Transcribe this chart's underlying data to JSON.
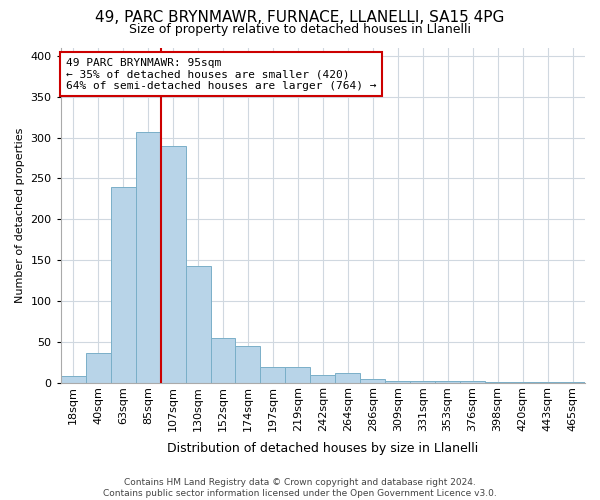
{
  "title": "49, PARC BRYNMAWR, FURNACE, LLANELLI, SA15 4PG",
  "subtitle": "Size of property relative to detached houses in Llanelli",
  "xlabel": "Distribution of detached houses by size in Llanelli",
  "ylabel": "Number of detached properties",
  "categories": [
    "18sqm",
    "40sqm",
    "63sqm",
    "85sqm",
    "107sqm",
    "130sqm",
    "152sqm",
    "174sqm",
    "197sqm",
    "219sqm",
    "242sqm",
    "264sqm",
    "286sqm",
    "309sqm",
    "331sqm",
    "353sqm",
    "376sqm",
    "398sqm",
    "420sqm",
    "443sqm",
    "465sqm"
  ],
  "values": [
    8,
    37,
    240,
    307,
    290,
    143,
    55,
    45,
    20,
    20,
    10,
    12,
    5,
    2,
    2,
    2,
    2,
    1,
    1,
    1,
    1
  ],
  "bar_color": "#b8d4e8",
  "bar_edge_color": "#7aafc8",
  "redline_index": 4,
  "annotation_text": "49 PARC BRYNMAWR: 95sqm\n← 35% of detached houses are smaller (420)\n64% of semi-detached houses are larger (764) →",
  "annotation_box_color": "#ffffff",
  "annotation_box_edge_color": "#cc0000",
  "redline_color": "#cc0000",
  "ylim": [
    0,
    410
  ],
  "yticks": [
    0,
    50,
    100,
    150,
    200,
    250,
    300,
    350,
    400
  ],
  "footer": "Contains HM Land Registry data © Crown copyright and database right 2024.\nContains public sector information licensed under the Open Government Licence v3.0.",
  "background_color": "#ffffff",
  "grid_color": "#d0d8e0",
  "title_fontsize": 11,
  "subtitle_fontsize": 9,
  "xlabel_fontsize": 9,
  "ylabel_fontsize": 8,
  "tick_fontsize": 8,
  "footer_fontsize": 6.5,
  "annot_fontsize": 8
}
